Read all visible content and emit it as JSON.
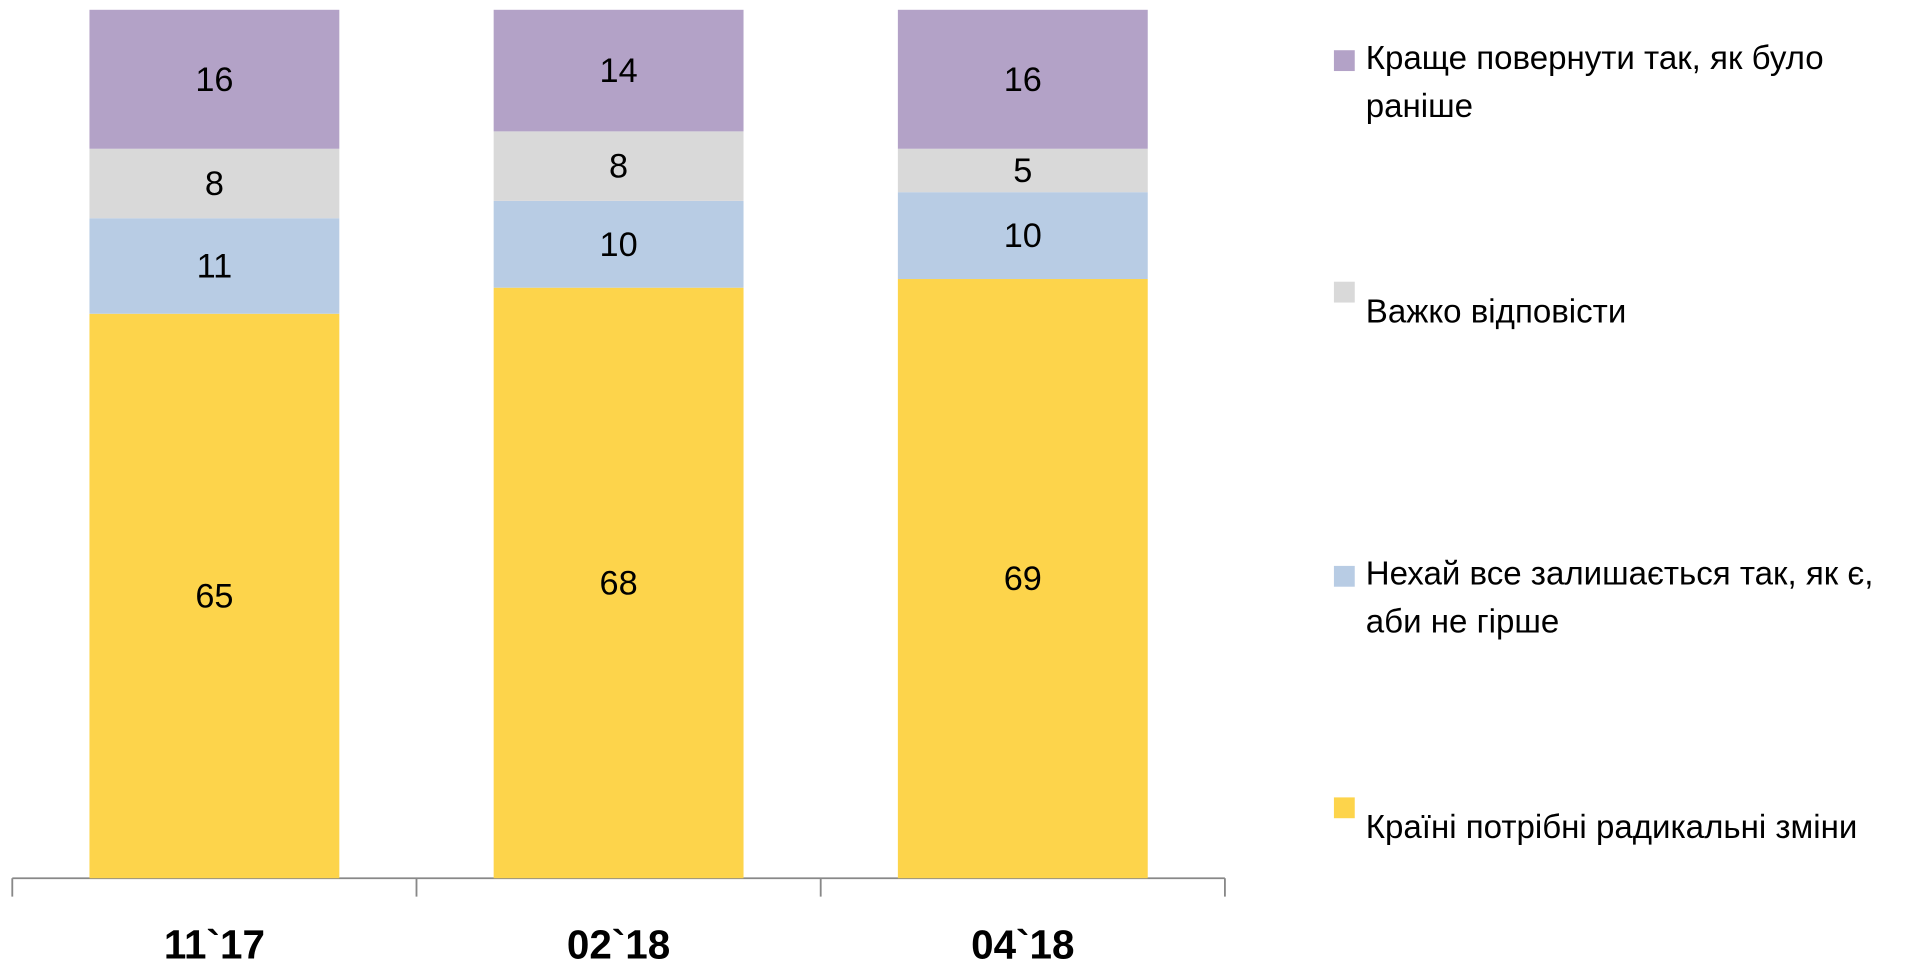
{
  "chart_data": {
    "type": "stacked_bar",
    "categories": [
      "11`17",
      "02`18",
      "04`18"
    ],
    "ylim": [
      0,
      100
    ],
    "series": [
      {
        "name": "Країні потрібні радикальні зміни",
        "color": "#fdd44b",
        "values": [
          65,
          68,
          69
        ]
      },
      {
        "name": "Нехай все залишається так, як є, аби не гірше",
        "color": "#b8cce4",
        "values": [
          11,
          10,
          10
        ]
      },
      {
        "name": "Важко відповісти",
        "color": "#d9d9d9",
        "values": [
          8,
          8,
          5
        ]
      },
      {
        "name": "Краще повернути так, як було раніше",
        "color": "#b3a2c7",
        "values": [
          16,
          14,
          16
        ]
      }
    ]
  }
}
